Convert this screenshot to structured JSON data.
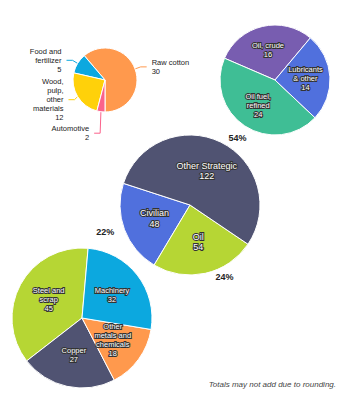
{
  "chart_data": [
    {
      "type": "pie",
      "categories": [
        "Civilian",
        "Oil",
        "Other Strategic"
      ],
      "values": [
        48,
        54,
        122
      ],
      "data_labels": true,
      "shares": [
        22,
        24,
        54
      ],
      "share_labels": [
        "22%",
        "24%",
        "54%"
      ],
      "annotation": "Totals may not add due to rounding."
    },
    {
      "type": "pie",
      "categories": [
        "Raw cotton",
        "Food and\nfertilizer",
        "Wood,\npulp,\nother\nmaterials",
        "Automotive"
      ],
      "values": [
        30,
        5,
        12,
        2
      ],
      "data_labels": true
    },
    {
      "type": "pie",
      "categories": [
        "Oil, crude",
        "Oil fuel,\nrefined",
        "Lubricants\n& other"
      ],
      "values": [
        16,
        24,
        14
      ],
      "data_labels": true
    },
    {
      "type": "pie",
      "categories": [
        "Steel and\nscrap",
        "Copper",
        "Other\nmetals and\nchemicals",
        "Machinery"
      ],
      "values": [
        45,
        27,
        18,
        32
      ],
      "data_labels": true
    }
  ]
}
